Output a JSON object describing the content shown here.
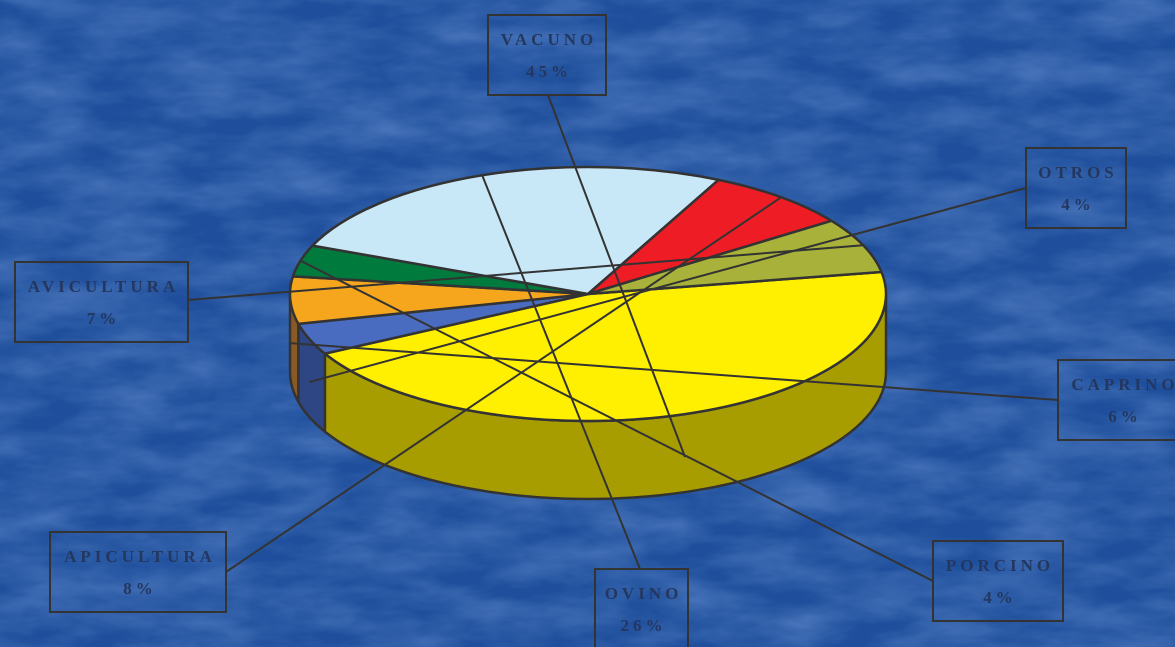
{
  "colors": {
    "background": "#1f4f9c",
    "background_dark": "#143c80",
    "label_text": "#24375f",
    "label_border": "#333333",
    "outline": "#333333"
  },
  "chart_data": {
    "type": "pie",
    "style": "3d",
    "title": "",
    "slices": [
      {
        "label": "VACUNO",
        "value": 45,
        "value_text": "45%",
        "color": "#ffef00",
        "side_color": "#a89d00"
      },
      {
        "label": "OTROS",
        "value": 4,
        "value_text": "4%",
        "color": "#4a6cc0",
        "side_color": "#2e4683"
      },
      {
        "label": "CAPRINO",
        "value": 6,
        "value_text": "6%",
        "color": "#f5a61d",
        "side_color": "#8a5a26"
      },
      {
        "label": "PORCINO",
        "value": 4,
        "value_text": "4%",
        "color": "#007a3d",
        "side_color": "#1c4a32"
      },
      {
        "label": "OVINO",
        "value": 26,
        "value_text": "26%",
        "color": "#c8e8f8",
        "side_color": "#7f7f7f"
      },
      {
        "label": "APICULTURA",
        "value": 8,
        "value_text": "8%",
        "color": "#ee1c24",
        "side_color": "#8b2a2f"
      },
      {
        "label": "AVICULTURA",
        "value": 7,
        "value_text": "7%",
        "color": "#a8b23a",
        "side_color": "#6e6c3a"
      }
    ]
  }
}
